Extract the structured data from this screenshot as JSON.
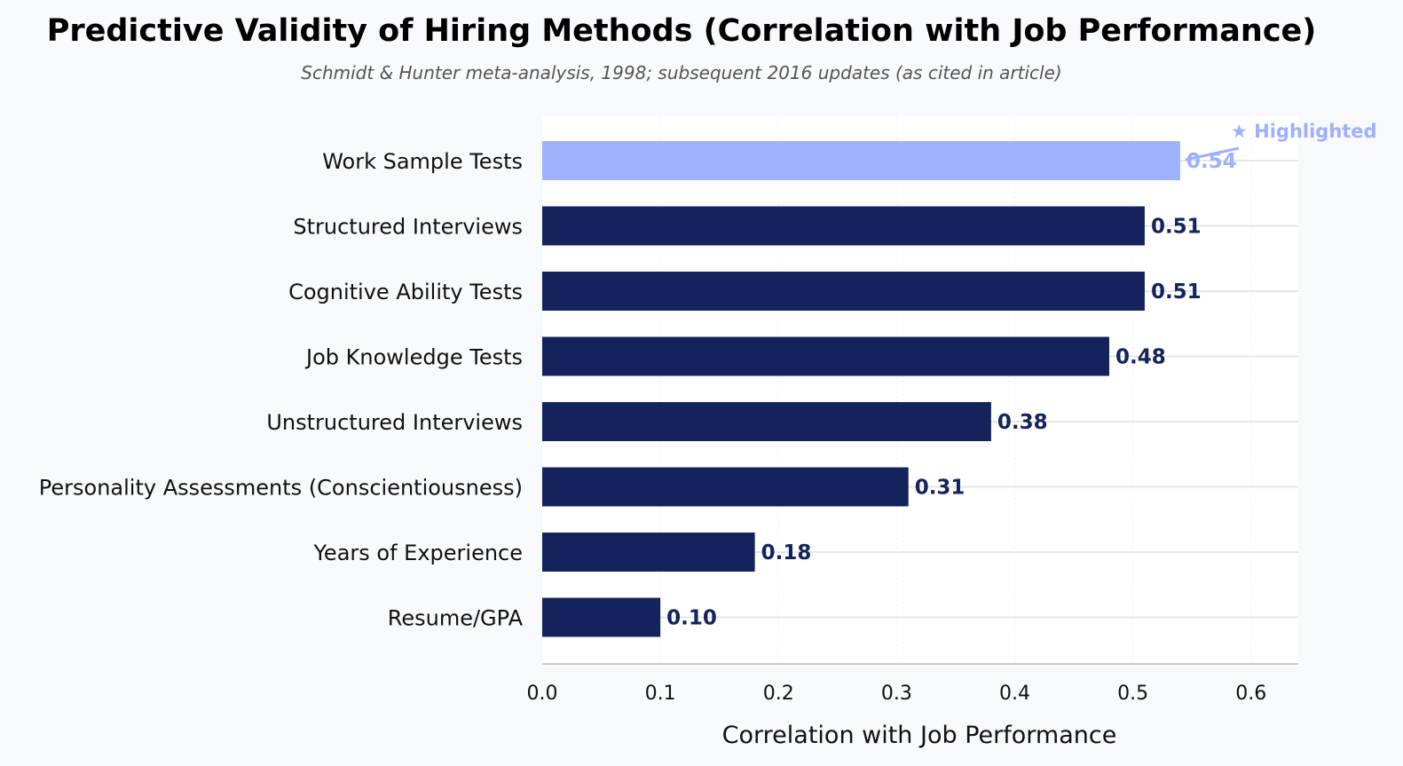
{
  "chart_data": {
    "type": "bar",
    "orientation": "horizontal",
    "title": "Predictive Validity of Hiring Methods (Correlation with Job Performance)",
    "subtitle": "Schmidt & Hunter meta-analysis, 1998; subsequent 2016 updates (as cited in article)",
    "xlabel": "Correlation with Job Performance",
    "ylabel": "",
    "categories": [
      "Work Sample Tests",
      "Structured Interviews",
      "Cognitive Ability Tests",
      "Job Knowledge Tests",
      "Unstructured Interviews",
      "Personality Assessments (Conscientiousness)",
      "Years of Experience",
      "Resume/GPA"
    ],
    "values": [
      0.54,
      0.51,
      0.51,
      0.48,
      0.38,
      0.31,
      0.18,
      0.1
    ],
    "value_labels": [
      "0.54",
      "0.51",
      "0.51",
      "0.48",
      "0.38",
      "0.31",
      "0.18",
      "0.10"
    ],
    "highlighted_index": 0,
    "annotation": "★ Highlighted",
    "xlim": [
      0,
      0.64
    ],
    "xticks": [
      0.0,
      0.1,
      0.2,
      0.3,
      0.4,
      0.5,
      0.6
    ],
    "xtick_labels": [
      "0.0",
      "0.1",
      "0.2",
      "0.3",
      "0.4",
      "0.5",
      "0.6"
    ],
    "grid": true,
    "legend": "none",
    "colors": {
      "bar": "#14235b",
      "highlight": "#9fb0fc",
      "background": "#f8f9fd",
      "plot_background": "#ffffff",
      "grid": "#e6e6e6",
      "axis": "#cccccc"
    }
  }
}
